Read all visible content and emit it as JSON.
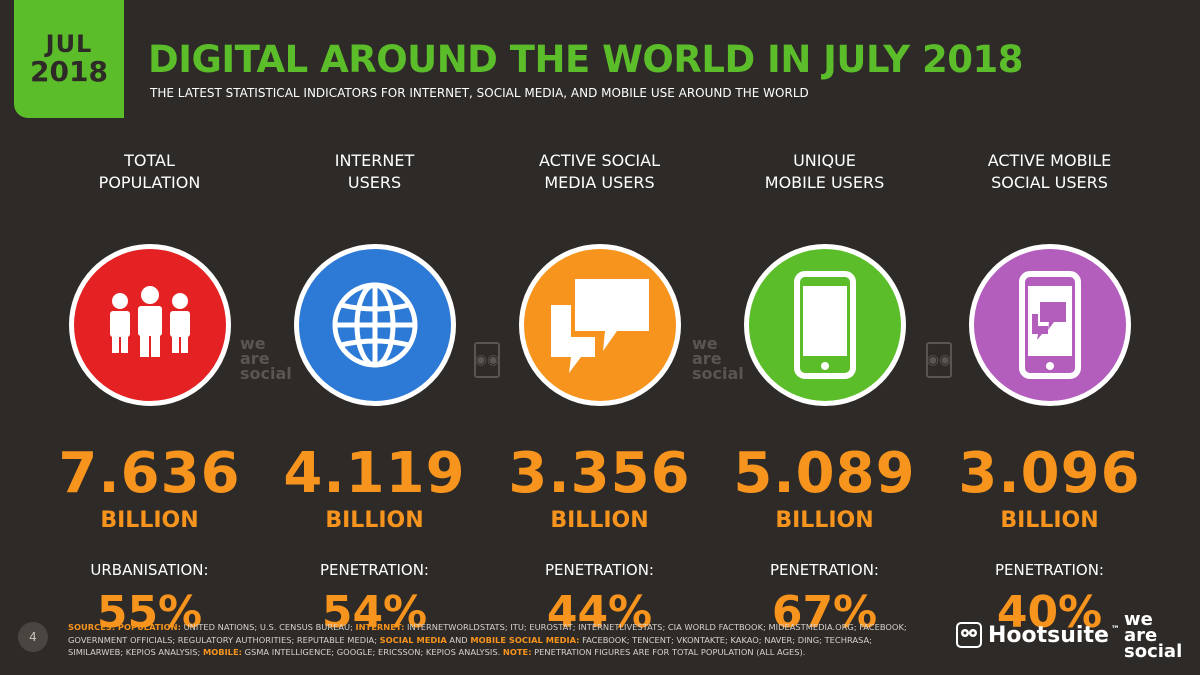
{
  "badge": {
    "month": "JUL",
    "year": "2018"
  },
  "header": {
    "title": "DIGITAL AROUND THE WORLD IN JULY 2018",
    "subtitle": "THE LATEST STATISTICAL INDICATORS FOR INTERNET, SOCIAL MEDIA, AND MOBILE USE AROUND THE WORLD"
  },
  "stats": [
    {
      "label1": "TOTAL",
      "label2": "POPULATION",
      "value": "7.636",
      "unit": "BILLION",
      "sublabel": "URBANISATION:",
      "pct": "55%",
      "color": "#e42224",
      "icon": "people-icon"
    },
    {
      "label1": "INTERNET",
      "label2": "USERS",
      "value": "4.119",
      "unit": "BILLION",
      "sublabel": "PENETRATION:",
      "pct": "54%",
      "color": "#2d7ad6",
      "icon": "globe-icon"
    },
    {
      "label1": "ACTIVE SOCIAL",
      "label2": "MEDIA USERS",
      "value": "3.356",
      "unit": "BILLION",
      "sublabel": "PENETRATION:",
      "pct": "44%",
      "color": "#f7941d",
      "icon": "chat-bubbles-icon"
    },
    {
      "label1": "UNIQUE",
      "label2": "MOBILE USERS",
      "value": "5.089",
      "unit": "BILLION",
      "sublabel": "PENETRATION:",
      "pct": "67%",
      "color": "#5cbd2a",
      "icon": "mobile-phone-icon"
    },
    {
      "label1": "ACTIVE MOBILE",
      "label2": "SOCIAL USERS",
      "value": "3.096",
      "unit": "BILLION",
      "sublabel": "PENETRATION:",
      "pct": "40%",
      "color": "#b35dbd",
      "icon": "phone-chat-icon"
    }
  ],
  "watermark": {
    "line1": "we",
    "line2": "are",
    "line3": "social"
  },
  "footer": {
    "page": "4",
    "sources_label": "SOURCES:",
    "pop_label": "POPULATION:",
    "pop_text": " UNITED NATIONS; U.S. CENSUS BUREAU; ",
    "internet_label": "INTERNET:",
    "internet_text": " INTERNETWORLDSTATS; ITU; EUROSTAT; INTERNETLIVESTATS; CIA WORLD FACTBOOK; MIDEASTMEDIA.ORG; FACEBOOK; GOVERNMENT OFFICIALS; REGULATORY AUTHORITIES; REPUTABLE MEDIA; ",
    "social_label": "SOCIAL MEDIA",
    "and_text": " AND ",
    "mobile_social_label": "MOBILE SOCIAL MEDIA:",
    "social_text": " FACEBOOK; TENCENT; VKONTAKTE; KAKAO; NAVER; DING; TECHRASA; SIMILARWEB; KEPIOS ANALYSIS; ",
    "mobile_label": "MOBILE:",
    "mobile_text": " GSMA INTELLIGENCE; GOOGLE; ERICSSON; KEPIOS ANALYSIS. ",
    "note_label": "NOTE:",
    "note_text": " PENETRATION FIGURES ARE FOR TOTAL POPULATION (ALL AGES).",
    "hootsuite": "Hootsuite",
    "tm": "™",
    "was1": "we",
    "was2": "are",
    "was3": "social"
  }
}
